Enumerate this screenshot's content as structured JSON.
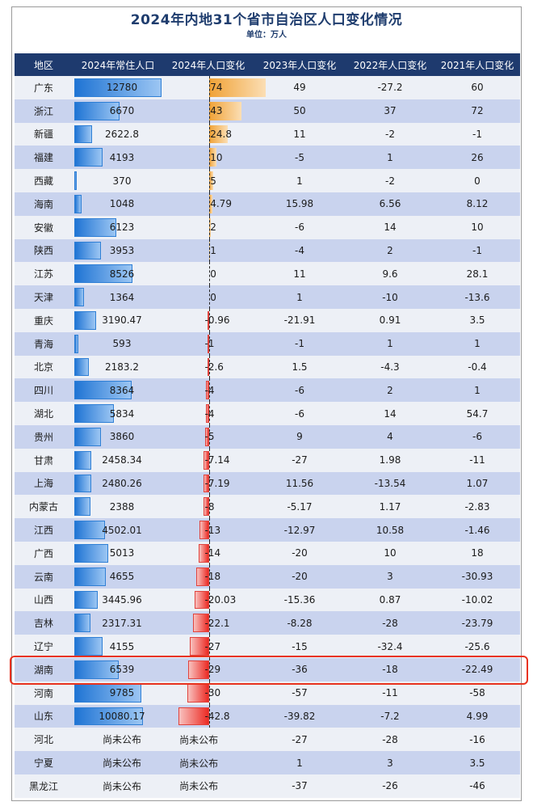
{
  "title": "2024年内地31个省市自治区人口变化情况",
  "unit": "单位：万人",
  "headers": [
    "地区",
    "2024年常住人口",
    "2024年人口变化",
    "2023年人口变化",
    "2022年人口变化",
    "2021年人口变化"
  ],
  "colors": {
    "header_bg": "#1e3a6e",
    "pop_bar": "#1f74d4",
    "positive_bar": "#f0a236",
    "negative_bar": "#ec2b24",
    "highlight_border": "#e8321e"
  },
  "highlighted_region": "湖南",
  "chart_data": {
    "type": "table",
    "columns": [
      "地区",
      "2024年常住人口",
      "2024年人口变化",
      "2023年人口变化",
      "2022年人口变化",
      "2021年人口变化"
    ],
    "rows": [
      {
        "region": "广东",
        "pop2024": "12780",
        "chg2024": "74",
        "chg2023": "49",
        "chg2022": "-27.2",
        "chg2021": "60"
      },
      {
        "region": "浙江",
        "pop2024": "6670",
        "chg2024": "43",
        "chg2023": "50",
        "chg2022": "37",
        "chg2021": "72"
      },
      {
        "region": "新疆",
        "pop2024": "2622.8",
        "chg2024": "24.8",
        "chg2023": "11",
        "chg2022": "-2",
        "chg2021": "-1"
      },
      {
        "region": "福建",
        "pop2024": "4193",
        "chg2024": "10",
        "chg2023": "-5",
        "chg2022": "1",
        "chg2021": "26"
      },
      {
        "region": "西藏",
        "pop2024": "370",
        "chg2024": "5",
        "chg2023": "1",
        "chg2022": "-2",
        "chg2021": "0"
      },
      {
        "region": "海南",
        "pop2024": "1048",
        "chg2024": "4.79",
        "chg2023": "15.98",
        "chg2022": "6.56",
        "chg2021": "8.12"
      },
      {
        "region": "安徽",
        "pop2024": "6123",
        "chg2024": "2",
        "chg2023": "-6",
        "chg2022": "14",
        "chg2021": "10"
      },
      {
        "region": "陕西",
        "pop2024": "3953",
        "chg2024": "1",
        "chg2023": "-4",
        "chg2022": "2",
        "chg2021": "-1"
      },
      {
        "region": "江苏",
        "pop2024": "8526",
        "chg2024": "0",
        "chg2023": "11",
        "chg2022": "9.6",
        "chg2021": "28.1"
      },
      {
        "region": "天津",
        "pop2024": "1364",
        "chg2024": "0",
        "chg2023": "1",
        "chg2022": "-10",
        "chg2021": "-13.6"
      },
      {
        "region": "重庆",
        "pop2024": "3190.47",
        "chg2024": "-0.96",
        "chg2023": "-21.91",
        "chg2022": "0.91",
        "chg2021": "3.5"
      },
      {
        "region": "青海",
        "pop2024": "593",
        "chg2024": "-1",
        "chg2023": "-1",
        "chg2022": "1",
        "chg2021": "1"
      },
      {
        "region": "北京",
        "pop2024": "2183.2",
        "chg2024": "-2.6",
        "chg2023": "1.5",
        "chg2022": "-4.3",
        "chg2021": "-0.4"
      },
      {
        "region": "四川",
        "pop2024": "8364",
        "chg2024": "-4",
        "chg2023": "-6",
        "chg2022": "2",
        "chg2021": "1"
      },
      {
        "region": "湖北",
        "pop2024": "5834",
        "chg2024": "-4",
        "chg2023": "-6",
        "chg2022": "14",
        "chg2021": "54.7"
      },
      {
        "region": "贵州",
        "pop2024": "3860",
        "chg2024": "-5",
        "chg2023": "9",
        "chg2022": "4",
        "chg2021": "-6"
      },
      {
        "region": "甘肃",
        "pop2024": "2458.34",
        "chg2024": "-7.14",
        "chg2023": "-27",
        "chg2022": "1.98",
        "chg2021": "-11"
      },
      {
        "region": "上海",
        "pop2024": "2480.26",
        "chg2024": "-7.19",
        "chg2023": "11.56",
        "chg2022": "-13.54",
        "chg2021": "1.07"
      },
      {
        "region": "内蒙古",
        "pop2024": "2388",
        "chg2024": "-8",
        "chg2023": "-5.17",
        "chg2022": "1.17",
        "chg2021": "-2.83"
      },
      {
        "region": "江西",
        "pop2024": "4502.01",
        "chg2024": "-13",
        "chg2023": "-12.97",
        "chg2022": "10.58",
        "chg2021": "-1.46"
      },
      {
        "region": "广西",
        "pop2024": "5013",
        "chg2024": "-14",
        "chg2023": "-20",
        "chg2022": "10",
        "chg2021": "18"
      },
      {
        "region": "云南",
        "pop2024": "4655",
        "chg2024": "-18",
        "chg2023": "-20",
        "chg2022": "3",
        "chg2021": "-30.93"
      },
      {
        "region": "山西",
        "pop2024": "3445.96",
        "chg2024": "-20.03",
        "chg2023": "-15.36",
        "chg2022": "0.87",
        "chg2021": "-10.02"
      },
      {
        "region": "吉林",
        "pop2024": "2317.31",
        "chg2024": "-22.1",
        "chg2023": "-8.28",
        "chg2022": "-28",
        "chg2021": "-23.79"
      },
      {
        "region": "辽宁",
        "pop2024": "4155",
        "chg2024": "-27",
        "chg2023": "-15",
        "chg2022": "-32.4",
        "chg2021": "-25.6"
      },
      {
        "region": "湖南",
        "pop2024": "6539",
        "chg2024": "-29",
        "chg2023": "-36",
        "chg2022": "-18",
        "chg2021": "-22.49"
      },
      {
        "region": "河南",
        "pop2024": "9785",
        "chg2024": "-30",
        "chg2023": "-57",
        "chg2022": "-11",
        "chg2021": "-58"
      },
      {
        "region": "山东",
        "pop2024": "10080.17",
        "chg2024": "-42.8",
        "chg2023": "-39.82",
        "chg2022": "-7.2",
        "chg2021": "4.99"
      },
      {
        "region": "河北",
        "pop2024": "尚未公布",
        "chg2024": "尚未公布",
        "chg2023": "-27",
        "chg2022": "-28",
        "chg2021": "-16"
      },
      {
        "region": "宁夏",
        "pop2024": "尚未公布",
        "chg2024": "尚未公布",
        "chg2023": "1",
        "chg2022": "3",
        "chg2021": "3.5"
      },
      {
        "region": "黑龙江",
        "pop2024": "尚未公布",
        "chg2024": "尚未公布",
        "chg2023": "-37",
        "chg2022": "-26",
        "chg2021": "-46"
      }
    ]
  }
}
